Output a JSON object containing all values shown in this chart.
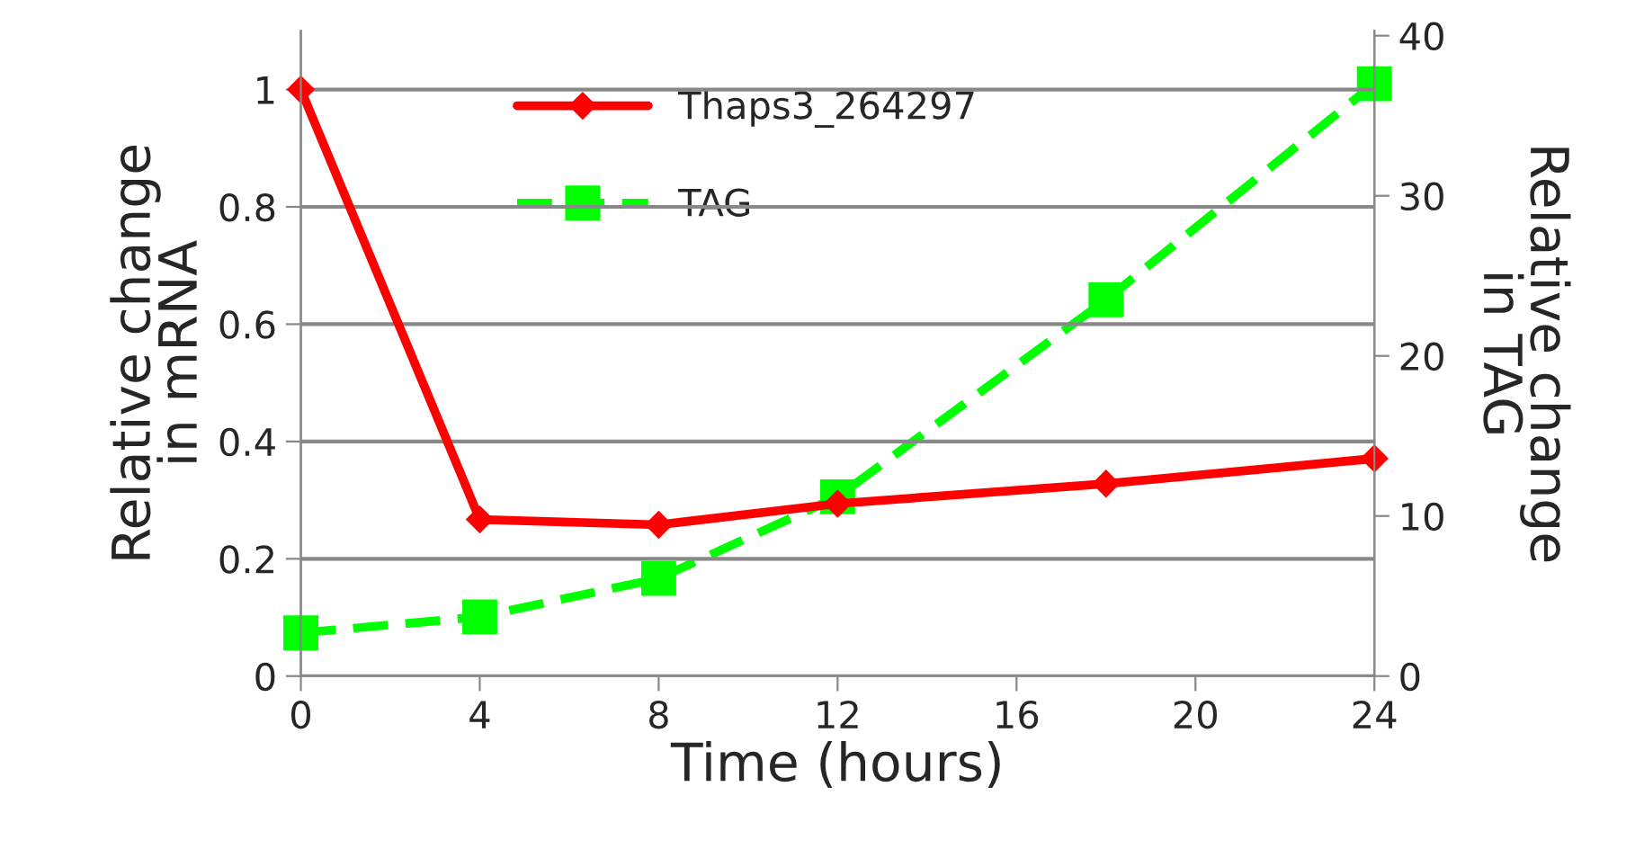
{
  "chart_data": {
    "type": "line",
    "xlabel": "Time (hours)",
    "ylabel": "Relative change\nin mRNA",
    "y2label": "Relative change\nin TAG",
    "x": [
      0,
      4,
      8,
      12,
      18,
      24
    ],
    "series": [
      {
        "name": "Thaps3_264297",
        "color": "#ff0000",
        "marker": "diamond",
        "line_style": "solid",
        "values": [
          1.0,
          0.267,
          0.258,
          0.294,
          0.328,
          0.371
        ]
      },
      {
        "name": "TAG",
        "color": "#00ff00",
        "marker": "square",
        "line_style": "dashed",
        "axis": "y2",
        "values": [
          2.7,
          3.7,
          6.1,
          11.2,
          23.5,
          37
        ]
      }
    ],
    "xlim": [
      0,
      24
    ],
    "xticks": [
      0,
      4,
      8,
      12,
      16,
      20,
      24
    ],
    "ylim": [
      0,
      1.1
    ],
    "yticks": [
      0,
      0.2,
      0.4,
      0.6,
      0.8,
      1
    ],
    "y2lim": [
      0,
      40.3
    ],
    "y2ticks": [
      0,
      10,
      20,
      30,
      40
    ],
    "grid": "y",
    "legend": "top left"
  }
}
